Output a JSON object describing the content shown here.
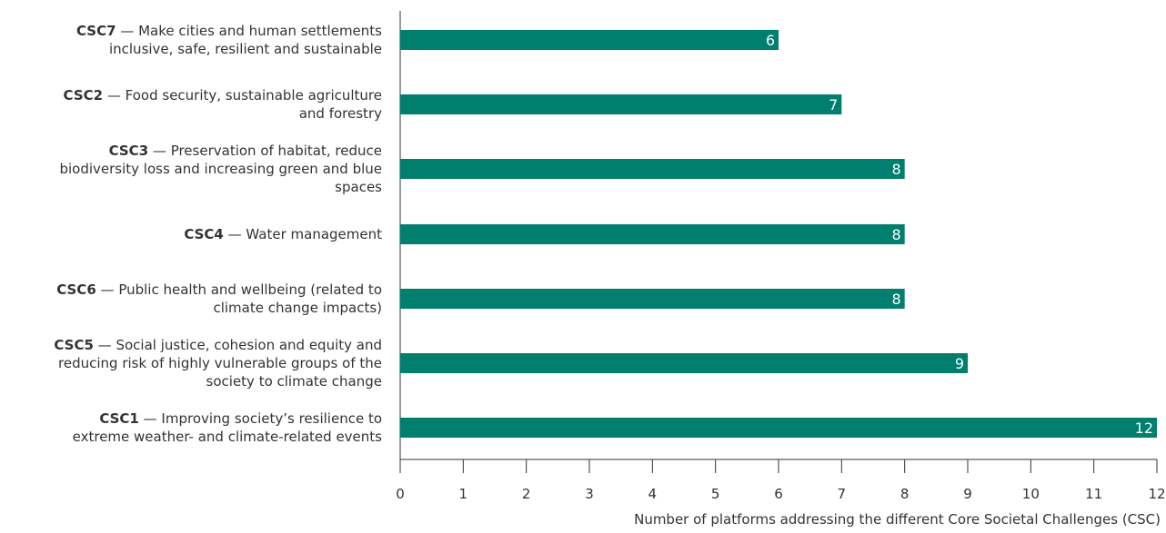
{
  "chart_data": {
    "type": "bar",
    "orientation": "horizontal",
    "categories": [
      {
        "code": "CSC7",
        "sep": " — ",
        "lines": [
          "Make cities and human settlements",
          "inclusive, safe, resilient and sustainable"
        ]
      },
      {
        "code": "CSC2",
        "sep": " — ",
        "lines": [
          "Food security, sustainable agriculture",
          "and forestry"
        ]
      },
      {
        "code": "CSC3",
        "sep": " — ",
        "lines": [
          "Preservation of habitat, reduce",
          "biodiversity loss and increasing green and blue",
          "spaces"
        ]
      },
      {
        "code": "CSC4",
        "sep": " — ",
        "lines": [
          "Water management"
        ]
      },
      {
        "code": "CSC6",
        "sep": " — ",
        "lines": [
          "Public health and wellbeing (related to",
          "climate change impacts)"
        ]
      },
      {
        "code": "CSC5",
        "sep": " — ",
        "lines": [
          "Social justice, cohesion and equity and",
          "reducing risk of highly vulnerable groups of the",
          "society to climate change"
        ]
      },
      {
        "code": "CSC1",
        "sep": " — ",
        "lines": [
          "Improving society’s resilience to",
          "extreme weather- and climate-related events"
        ]
      }
    ],
    "values": [
      6,
      7,
      8,
      8,
      8,
      9,
      12
    ],
    "value_labels": [
      "6",
      "7",
      "8",
      "8",
      "8",
      "9",
      "12"
    ],
    "xlabel": "Number of platforms addressing the different Core Societal Challenges (CSC)",
    "ylabel": "",
    "xlim": [
      0,
      12
    ],
    "xticks": [
      "0",
      "1",
      "2",
      "3",
      "4",
      "5",
      "6",
      "7",
      "8",
      "9",
      "10",
      "11",
      "12"
    ],
    "grid": false,
    "legend": "none",
    "colors": {
      "bar": "#007e6e",
      "axis": "#333333",
      "value_label": "#ffffff"
    }
  }
}
